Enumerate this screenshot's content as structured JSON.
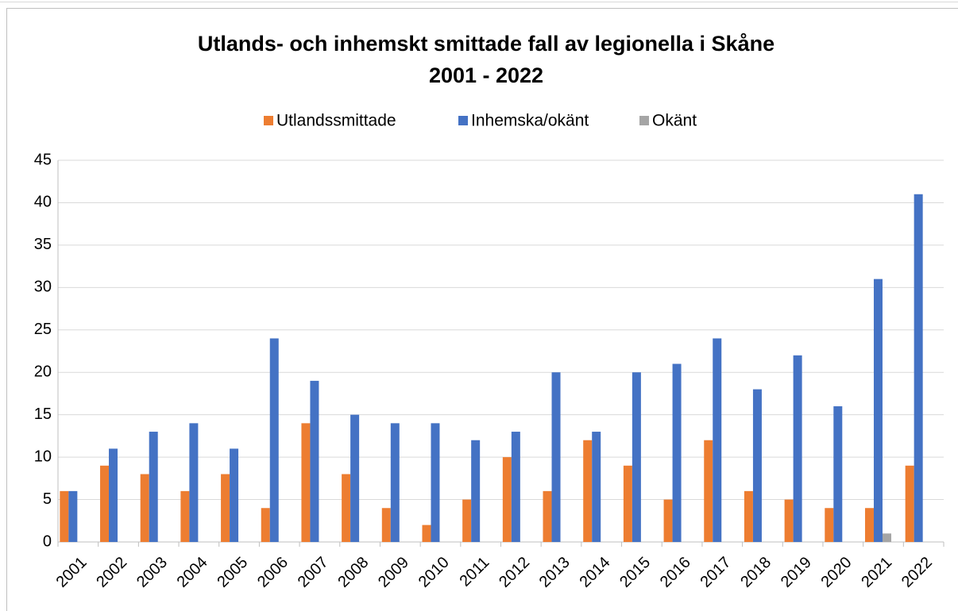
{
  "chart_data": {
    "type": "bar",
    "title": [
      "Utlands- och inhemskt smittade fall av legionella i Skåne",
      "2001 - 2022"
    ],
    "categories": [
      "2001",
      "2002",
      "2003",
      "2004",
      "2005",
      "2006",
      "2007",
      "2008",
      "2009",
      "2010",
      "2011",
      "2012",
      "2013",
      "2014",
      "2015",
      "2016",
      "2017",
      "2018",
      "2019",
      "2020",
      "2021",
      "2022"
    ],
    "series": [
      {
        "name": "Utlandssmittade",
        "color": "#ED7D31",
        "values": [
          6,
          9,
          8,
          6,
          8,
          4,
          14,
          8,
          4,
          2,
          5,
          10,
          6,
          12,
          9,
          5,
          12,
          6,
          5,
          4,
          4,
          9
        ]
      },
      {
        "name": "Inhemska/okänt",
        "color": "#4472C4",
        "values": [
          6,
          11,
          13,
          14,
          11,
          24,
          19,
          15,
          14,
          14,
          12,
          13,
          20,
          13,
          20,
          21,
          24,
          18,
          22,
          16,
          31,
          41
        ]
      },
      {
        "name": "Okänt",
        "color": "#A5A5A5",
        "values": [
          0,
          0,
          0,
          0,
          0,
          0,
          0,
          0,
          0,
          0,
          0,
          0,
          0,
          0,
          0,
          0,
          0,
          0,
          0,
          0,
          1,
          0
        ]
      }
    ],
    "ylim": [
      0,
      45
    ],
    "yticks": [
      0,
      5,
      10,
      15,
      20,
      25,
      30,
      35,
      40,
      45
    ],
    "grid": true,
    "legend": "top"
  }
}
